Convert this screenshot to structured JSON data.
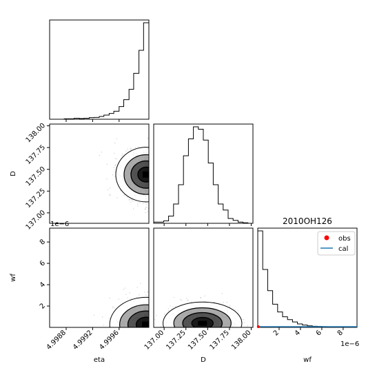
{
  "chart_data": {
    "type": "corner",
    "title": "2010OH126",
    "parameters": [
      "eta",
      "D",
      "wf"
    ],
    "axis_multipliers": {
      "wf": "1e−6"
    },
    "ranges": {
      "eta": [
        4.99855,
        5.00005
      ],
      "D": [
        136.88,
        138.02
      ],
      "wf": [
        0.0,
        9.3
      ]
    },
    "ticks": {
      "eta": [
        4.9988,
        4.9992,
        4.9996
      ],
      "D": [
        137.0,
        137.25,
        137.5,
        137.75,
        138.0
      ],
      "wf": [
        2,
        4,
        6,
        8
      ]
    },
    "tick_labels": {
      "eta": [
        "4.9988",
        "4.9992",
        "4.9996"
      ],
      "D": [
        "137.00",
        "137.25",
        "137.50",
        "137.75",
        "138.00"
      ],
      "wf": [
        "2",
        "4",
        "6",
        "8"
      ]
    },
    "histograms": {
      "eta": {
        "bin_edges": [
          4.99855,
          4.99862,
          4.9987,
          4.99877,
          4.99885,
          4.99892,
          4.999,
          4.99907,
          4.99915,
          4.99922,
          4.9993,
          4.99937,
          4.99945,
          4.99952,
          4.9996,
          4.99967,
          4.99975,
          4.99982,
          4.9999,
          4.99997,
          5.00005
        ],
        "counts": [
          0,
          0,
          0,
          2,
          2,
          4,
          3,
          4,
          7,
          8,
          12,
          18,
          25,
          35,
          55,
          85,
          130,
          200,
          300,
          420
        ]
      },
      "D": {
        "bin_edges": [
          136.88,
          136.937,
          136.994,
          137.051,
          137.108,
          137.165,
          137.222,
          137.279,
          137.336,
          137.393,
          137.45,
          137.507,
          137.564,
          137.621,
          137.678,
          137.735,
          137.792,
          137.849,
          137.906,
          137.963,
          138.02
        ],
        "counts": [
          5,
          5,
          10,
          30,
          80,
          160,
          280,
          350,
          400,
          390,
          345,
          250,
          160,
          80,
          55,
          20,
          12,
          5,
          2,
          0
        ]
      },
      "wf": {
        "bin_edges": [
          0.0,
          0.465,
          0.93,
          1.395,
          1.86,
          2.325,
          2.79,
          3.255,
          3.72,
          4.185,
          4.65,
          5.115,
          5.58,
          6.045,
          6.51,
          6.975,
          7.44,
          7.905,
          8.37,
          8.835,
          9.3
        ],
        "counts": [
          500,
          300,
          190,
          120,
          80,
          55,
          40,
          28,
          18,
          12,
          8,
          6,
          5,
          4,
          3,
          2,
          1,
          1,
          1,
          0
        ]
      }
    },
    "overlay_series": [
      {
        "name": "obs",
        "type": "scatter",
        "color": "#ff0000",
        "x": [
          0.05
        ],
        "y": [
          0
        ]
      },
      {
        "name": "cal",
        "type": "line",
        "color": "#1f77b4",
        "x": [
          0.0,
          9.3
        ],
        "y": [
          0,
          0
        ]
      }
    ],
    "legend": {
      "location": "upper right",
      "entries": [
        "obs",
        "cal"
      ]
    },
    "contour_line_color": "#000000",
    "density_colormap": [
      "#ffffff",
      "#000000"
    ]
  }
}
